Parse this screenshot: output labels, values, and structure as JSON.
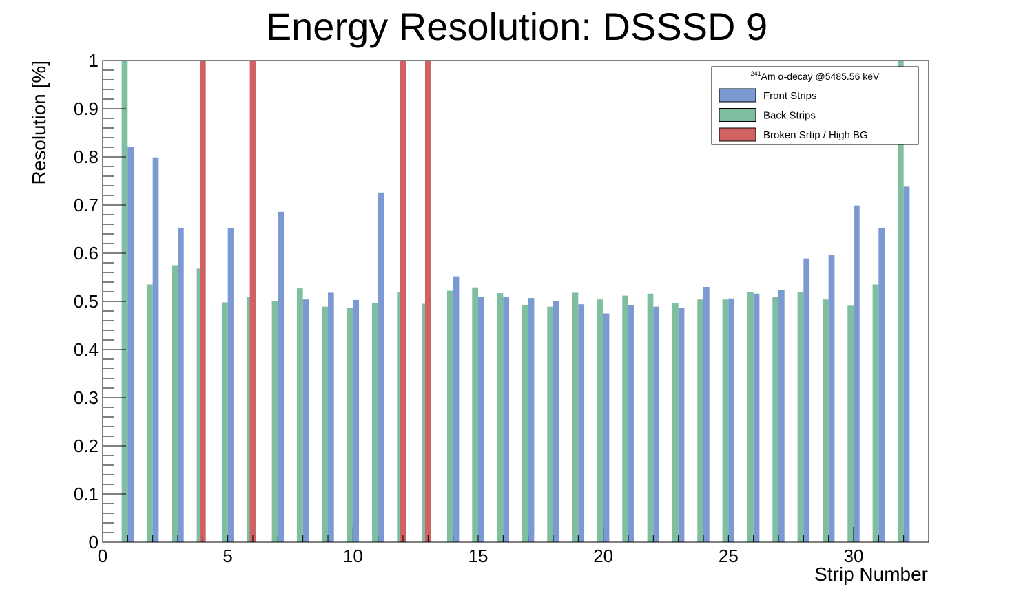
{
  "chart_data": {
    "type": "bar",
    "title": "Energy Resolution: DSSSD 9",
    "xlabel": "Strip Number",
    "ylabel": "Resolution [%]",
    "xlim": [
      0,
      33
    ],
    "ylim": [
      0,
      1
    ],
    "x_ticks": [
      "0",
      "5",
      "10",
      "15",
      "20",
      "25",
      "30"
    ],
    "y_ticks": [
      "0",
      "0.1",
      "0.2",
      "0.3",
      "0.4",
      "0.5",
      "0.6",
      "0.7",
      "0.8",
      "0.9",
      "1"
    ],
    "grid": false,
    "legend": {
      "placement": "top-right",
      "header_sup": "241",
      "header_text": "Am α-decay @5485.56 keV"
    },
    "series": [
      {
        "name": "Front Strips",
        "color": "#7b99d2",
        "strips": [
          1,
          2,
          3,
          5,
          7,
          8,
          9,
          10,
          11,
          14,
          15,
          16,
          17,
          18,
          19,
          20,
          21,
          22,
          23,
          24,
          25,
          26,
          27,
          28,
          29,
          30,
          31,
          32
        ],
        "values": [
          0.82,
          0.799,
          0.653,
          0.652,
          0.686,
          0.504,
          0.518,
          0.503,
          0.726,
          0.552,
          0.509,
          0.509,
          0.507,
          0.5,
          0.494,
          0.475,
          0.492,
          0.489,
          0.487,
          0.53,
          0.506,
          0.516,
          0.523,
          0.589,
          0.596,
          0.699,
          0.653,
          0.738
        ]
      },
      {
        "name": "Back Strips",
        "color": "#80bea0",
        "strips": [
          1,
          2,
          3,
          4,
          5,
          6,
          7,
          8,
          9,
          10,
          11,
          12,
          13,
          14,
          15,
          16,
          17,
          18,
          19,
          20,
          21,
          22,
          23,
          24,
          25,
          26,
          27,
          28,
          29,
          30,
          31,
          32
        ],
        "values": [
          1.0,
          0.535,
          0.575,
          0.568,
          0.498,
          0.51,
          0.501,
          0.527,
          0.489,
          0.486,
          0.496,
          0.52,
          0.495,
          0.522,
          0.529,
          0.517,
          0.493,
          0.489,
          0.518,
          0.504,
          0.512,
          0.516,
          0.496,
          0.504,
          0.504,
          0.52,
          0.509,
          0.519,
          0.504,
          0.491,
          0.535,
          1.0
        ]
      },
      {
        "name": "Broken Srtip / High BG",
        "color": "#d06264",
        "strips": [
          4,
          6,
          12,
          13
        ],
        "values": [
          1.0,
          1.0,
          1.0,
          1.0
        ]
      }
    ]
  }
}
